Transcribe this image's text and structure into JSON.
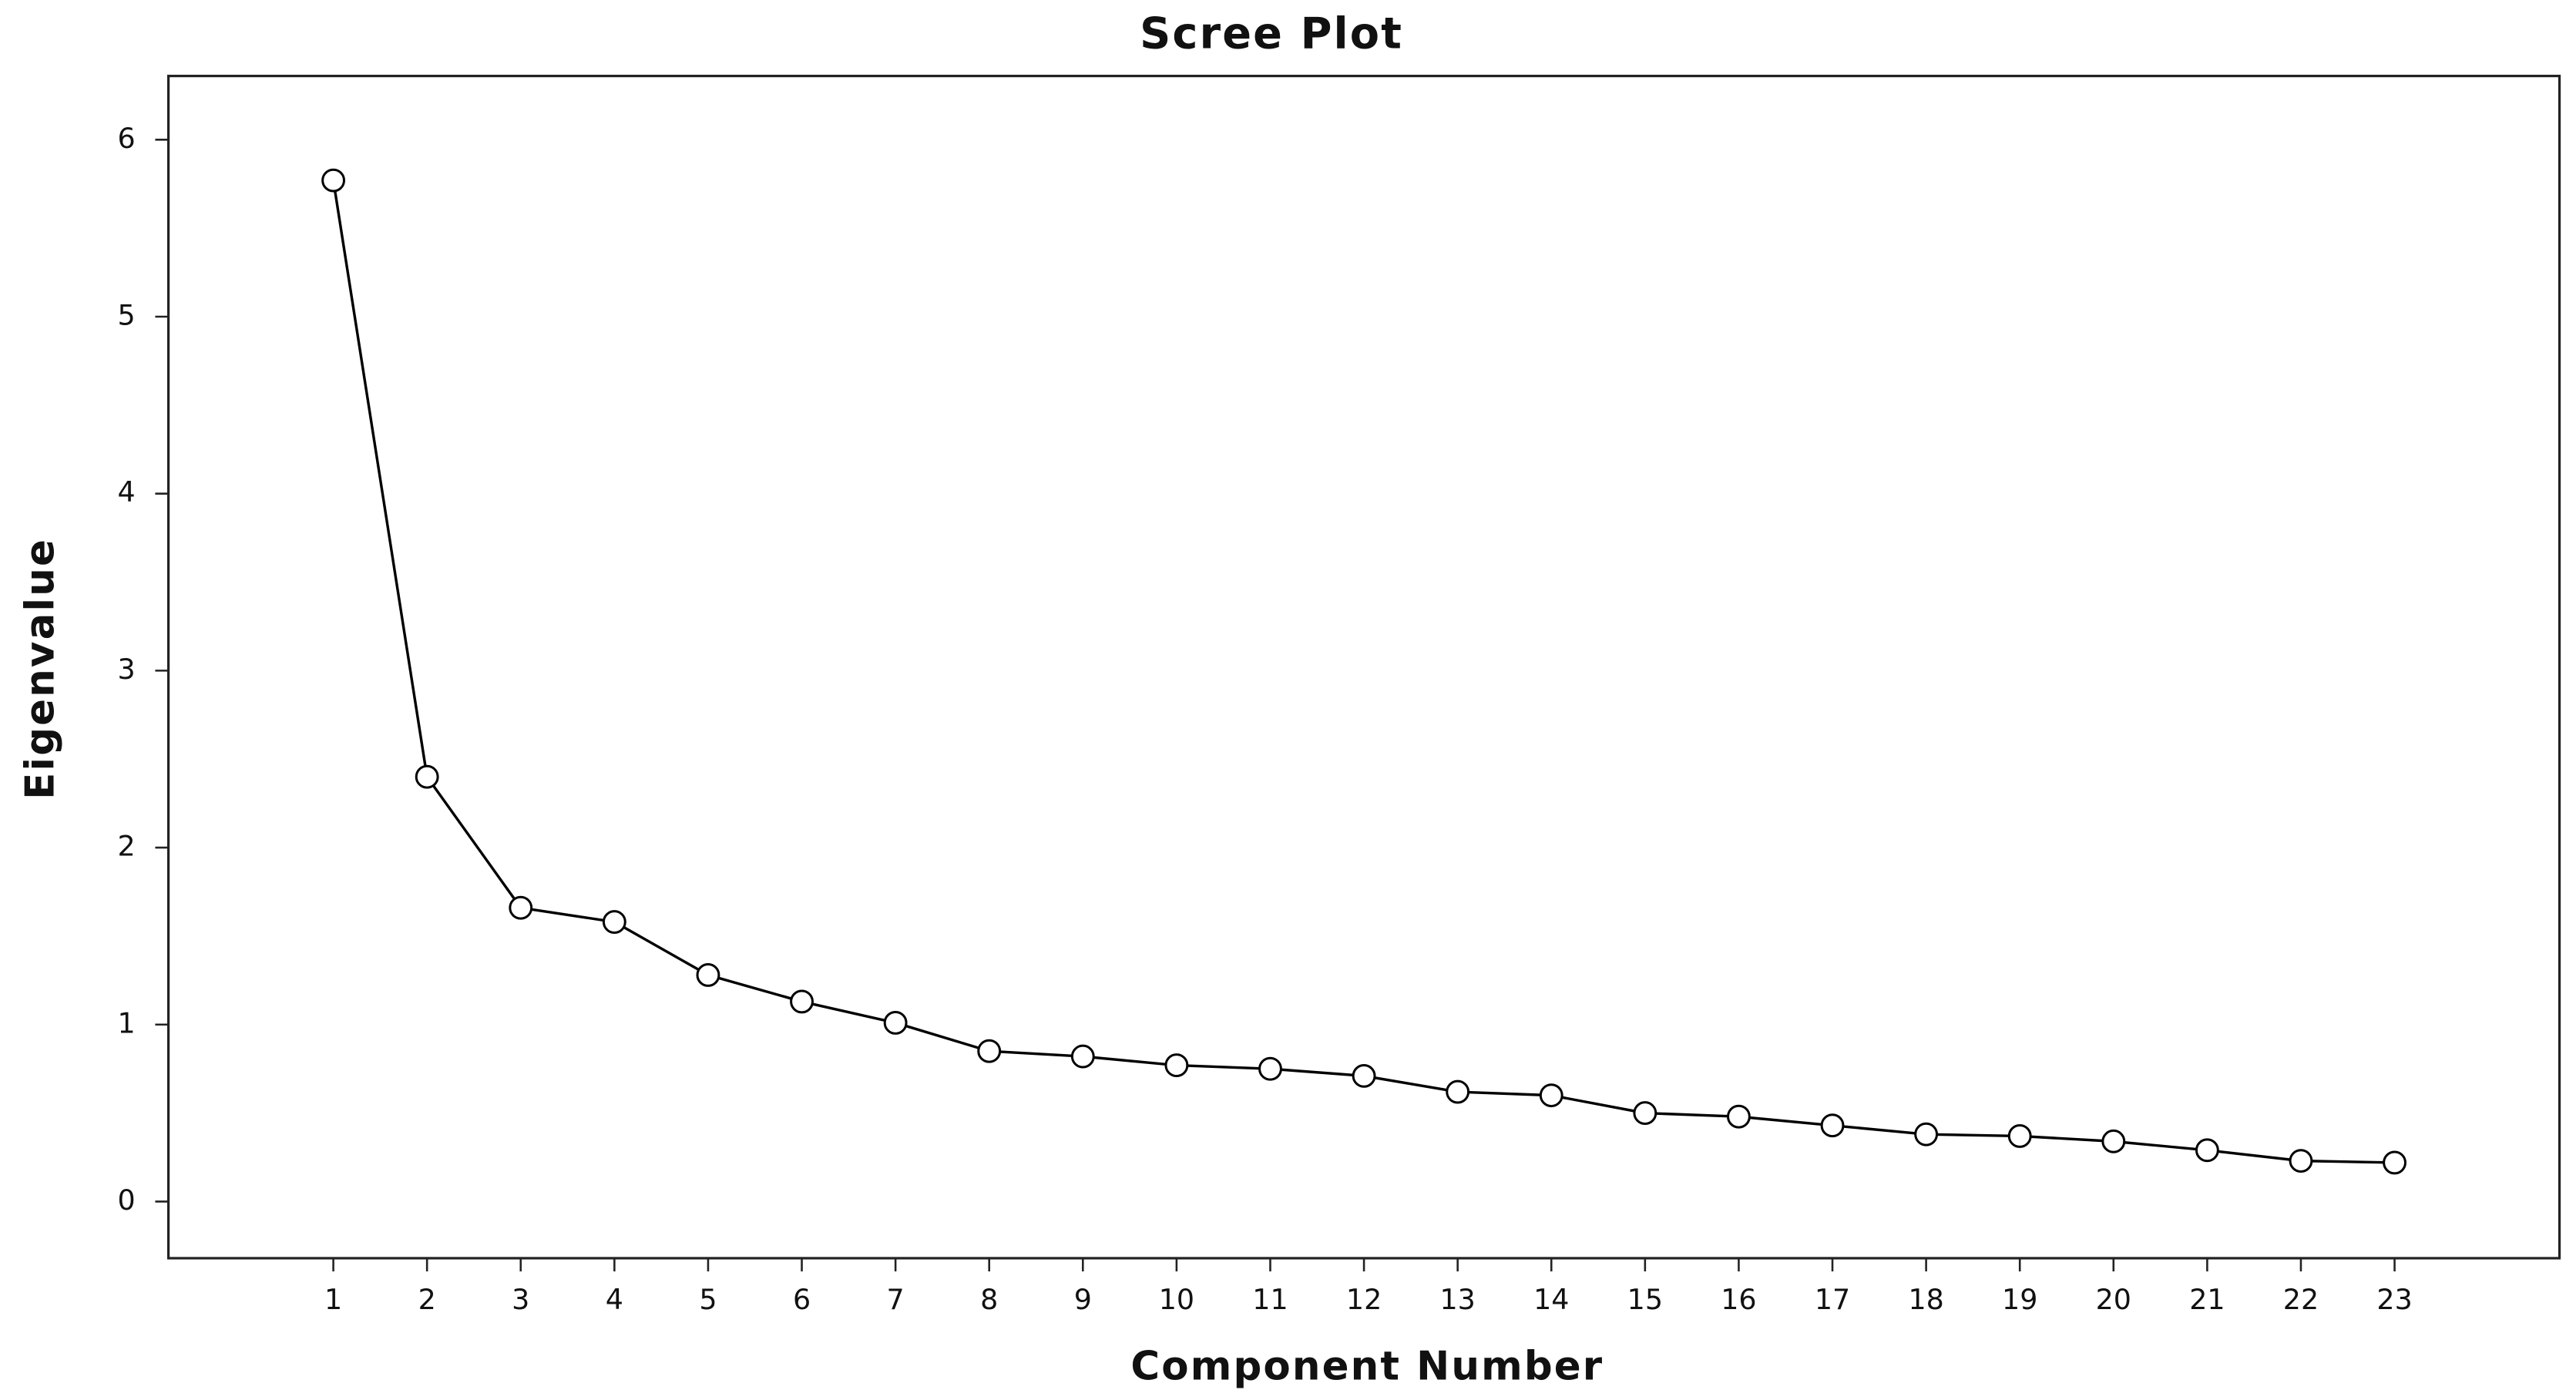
{
  "chart_data": {
    "type": "line",
    "title": "Scree Plot",
    "x_label": "Component Number",
    "y_label": "Eigenvalue",
    "x": [
      1,
      2,
      3,
      4,
      5,
      6,
      7,
      8,
      9,
      10,
      11,
      12,
      13,
      14,
      15,
      16,
      17,
      18,
      19,
      20,
      21,
      22,
      23
    ],
    "series": [
      {
        "color": "#000000",
        "values": [
          5.77,
          2.4,
          1.66,
          1.58,
          1.28,
          1.13,
          1.01,
          0.85,
          0.82,
          0.77,
          0.75,
          0.71,
          0.62,
          0.6,
          0.5,
          0.48,
          0.43,
          0.38,
          0.37,
          0.34,
          0.29,
          0.23,
          0.22
        ]
      }
    ],
    "xlim": [
      -0.76,
      24.76
    ],
    "ylim": [
      -0.32,
      6.36
    ],
    "xticks": [
      1,
      2,
      3,
      4,
      5,
      6,
      7,
      8,
      9,
      10,
      11,
      12,
      13,
      14,
      15,
      16,
      17,
      18,
      19,
      20,
      21,
      22,
      23
    ],
    "yticks": [
      0,
      1,
      2,
      3,
      4,
      5,
      6
    ],
    "grid": false,
    "marker": "open-circle"
  }
}
